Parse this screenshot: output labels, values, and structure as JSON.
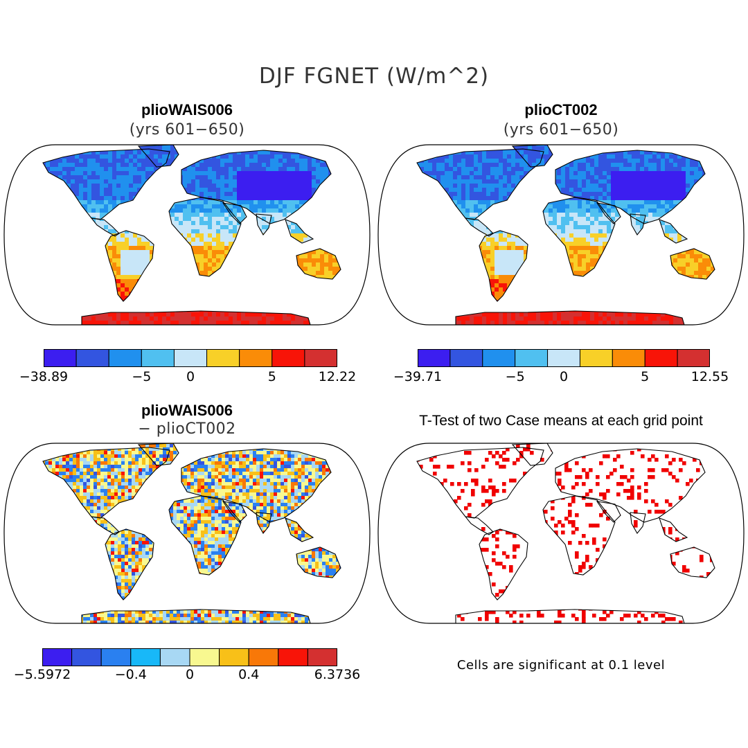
{
  "figure": {
    "title": "DJF FGNET (W/m^2)"
  },
  "panels": [
    {
      "title": "plioWAIS006",
      "subtitle": "(yrs 601−650)",
      "colorbar": {
        "ticks": [
          "−38.89",
          "−5",
          "0",
          "5",
          "12.22"
        ],
        "colors": [
          "#3c1ef0",
          "#3355e0",
          "#2090ee",
          "#50c0f0",
          "#c8e6f8",
          "#f8d028",
          "#fa8c08",
          "#f81408",
          "#d43030"
        ]
      }
    },
    {
      "title": "plioCT002",
      "subtitle": "(yrs 601−650)",
      "colorbar": {
        "ticks": [
          "−39.71",
          "−5",
          "0",
          "5",
          "12.55"
        ],
        "colors": [
          "#3c1ef0",
          "#3355e0",
          "#2090ee",
          "#50c0f0",
          "#c8e6f8",
          "#f8d028",
          "#fa8c08",
          "#f81408",
          "#d43030"
        ]
      }
    },
    {
      "title": "plioWAIS006",
      "subtitle": "− plioCT002",
      "colorbar": {
        "ticks": [
          "−5.5972",
          "−0.4",
          "0",
          "0.4",
          "6.3736"
        ],
        "colors": [
          "#3c1ef0",
          "#3355e0",
          "#2a80f0",
          "#18b8f8",
          "#a8d8f4",
          "#f8f890",
          "#f8c018",
          "#f87808",
          "#f81408",
          "#d43030"
        ]
      }
    },
    {
      "title": "T-Test of two Case means at each grid point",
      "note": "Cells are significant at 0.1 level",
      "significance_color": "#f00000"
    }
  ]
}
